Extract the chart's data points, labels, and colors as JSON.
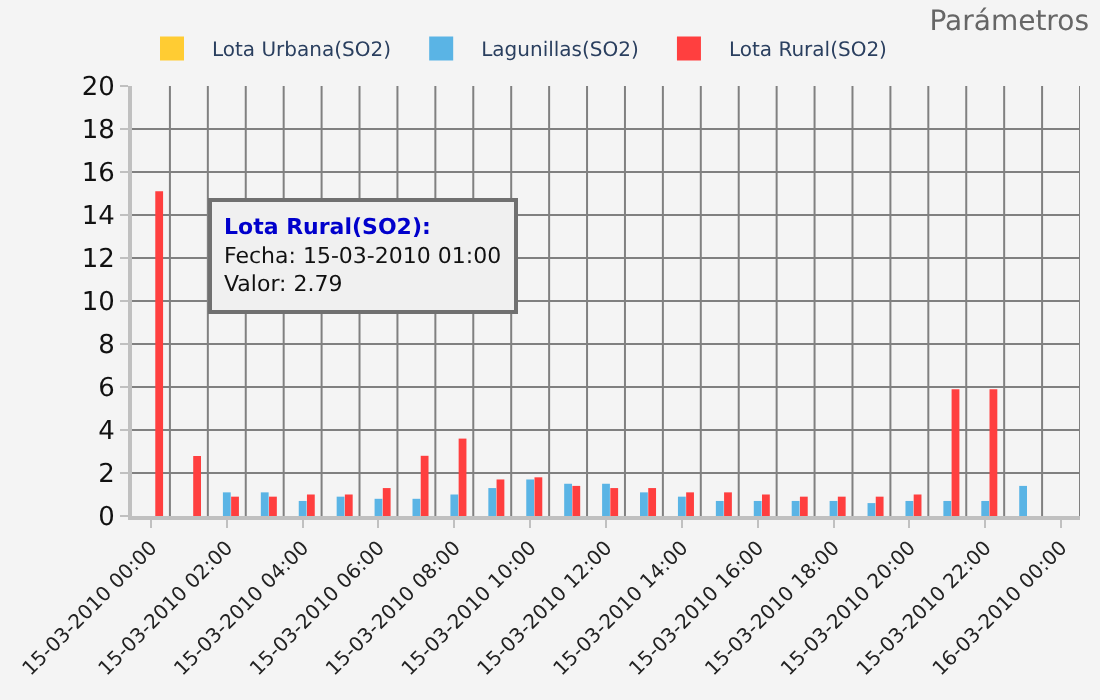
{
  "chart_data": {
    "type": "bar",
    "title": "Parámetros",
    "categories": [
      "15-03-2010 00:00",
      null,
      "15-03-2010 02:00",
      null,
      "15-03-2010 04:00",
      null,
      "15-03-2010 06:00",
      null,
      "15-03-2010 08:00",
      null,
      "15-03-2010 10:00",
      null,
      "15-03-2010 12:00",
      null,
      "15-03-2010 14:00",
      null,
      "15-03-2010 16:00",
      null,
      "15-03-2010 18:00",
      null,
      "15-03-2010 20:00",
      null,
      "15-03-2010 22:00",
      null,
      "16-03-2010 00:00"
    ],
    "series": [
      {
        "name": "Lota Urbana(SO2)",
        "color": "#ffcc33",
        "values": [
          null,
          null,
          null,
          null,
          null,
          null,
          null,
          null,
          null,
          null,
          null,
          null,
          null,
          null,
          null,
          null,
          null,
          null,
          null,
          null,
          null,
          null,
          null,
          null,
          null
        ]
      },
      {
        "name": "Lagunillas(SO2)",
        "color": "#5ab4e5",
        "values": [
          null,
          null,
          1.1,
          1.1,
          0.7,
          0.9,
          0.8,
          0.8,
          1.0,
          1.3,
          1.7,
          1.5,
          1.5,
          1.1,
          0.9,
          0.7,
          0.7,
          0.7,
          0.7,
          0.6,
          0.7,
          0.7,
          0.7,
          1.4,
          null
        ]
      },
      {
        "name": "Lota Rural(SO2)",
        "color": "#ff3f3f",
        "values": [
          15.1,
          2.79,
          0.9,
          0.9,
          1.0,
          1.0,
          1.3,
          2.8,
          3.6,
          1.7,
          1.8,
          1.4,
          1.3,
          1.3,
          1.1,
          1.1,
          1.0,
          0.9,
          0.9,
          0.9,
          1.0,
          5.9,
          5.9,
          null,
          null
        ]
      }
    ],
    "ylim": [
      0,
      20
    ],
    "yticks": [
      0,
      2,
      4,
      6,
      8,
      10,
      12,
      14,
      16,
      18,
      20
    ],
    "grid": true,
    "legend": "top left",
    "annotations": [
      "Lota Rural(SO2):",
      "Fecha: 15-03-2010 01:00",
      "Valor: 2.79"
    ]
  }
}
